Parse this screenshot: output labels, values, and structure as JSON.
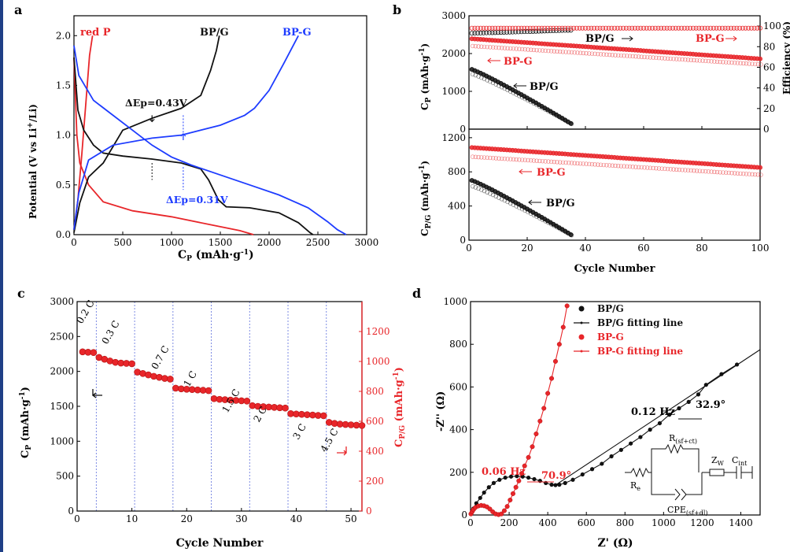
{
  "chart_data": [
    {
      "panel": "a",
      "type": "line",
      "xlabel": "CP (mAh·g-1)",
      "ylabel": "Potential (V vs Li+/Li)",
      "xlim": [
        0,
        3000
      ],
      "ylim": [
        0,
        2.2
      ],
      "xticks": [
        0,
        500,
        1000,
        1500,
        2000,
        2500,
        3000
      ],
      "yticks": [
        0.0,
        0.5,
        1.0,
        1.5,
        2.0
      ],
      "series": [
        {
          "name": "red P",
          "color": "#e8262a",
          "curves": [
            [
              [
                0,
                1.78
              ],
              [
                30,
                1.0
              ],
              [
                60,
                0.72
              ],
              [
                150,
                0.5
              ],
              [
                300,
                0.33
              ],
              [
                600,
                0.24
              ],
              [
                1000,
                0.18
              ],
              [
                1400,
                0.1
              ],
              [
                1700,
                0.04
              ],
              [
                1840,
                0.0
              ]
            ],
            [
              [
                0,
                0.05
              ],
              [
                40,
                0.35
              ],
              [
                80,
                0.8
              ],
              [
                120,
                1.3
              ],
              [
                160,
                1.8
              ],
              [
                190,
                2.0
              ]
            ]
          ]
        },
        {
          "name": "BP/G",
          "color": "#111111",
          "curves": [
            [
              [
                0,
                1.78
              ],
              [
                40,
                1.25
              ],
              [
                100,
                1.05
              ],
              [
                200,
                0.9
              ],
              [
                300,
                0.82
              ],
              [
                500,
                0.79
              ],
              [
                800,
                0.76
              ],
              [
                1100,
                0.72
              ],
              [
                1300,
                0.66
              ],
              [
                1380,
                0.55
              ],
              [
                1480,
                0.35
              ],
              [
                1560,
                0.28
              ],
              [
                1800,
                0.27
              ],
              [
                2100,
                0.22
              ],
              [
                2300,
                0.12
              ],
              [
                2420,
                0.02
              ],
              [
                2450,
                0.0
              ]
            ],
            [
              [
                0,
                0.02
              ],
              [
                60,
                0.32
              ],
              [
                150,
                0.58
              ],
              [
                300,
                0.72
              ],
              [
                500,
                1.05
              ],
              [
                800,
                1.17
              ],
              [
                1100,
                1.27
              ],
              [
                1300,
                1.4
              ],
              [
                1400,
                1.65
              ],
              [
                1460,
                1.85
              ],
              [
                1490,
                2.0
              ]
            ]
          ]
        },
        {
          "name": "BP-G",
          "color": "#1e3cff",
          "curves": [
            [
              [
                0,
                1.9
              ],
              [
                50,
                1.6
              ],
              [
                200,
                1.35
              ],
              [
                400,
                1.2
              ],
              [
                600,
                1.05
              ],
              [
                800,
                0.9
              ],
              [
                1000,
                0.78
              ],
              [
                1200,
                0.7
              ],
              [
                1500,
                0.6
              ],
              [
                1800,
                0.5
              ],
              [
                2100,
                0.4
              ],
              [
                2400,
                0.27
              ],
              [
                2600,
                0.13
              ],
              [
                2700,
                0.05
              ],
              [
                2790,
                0.0
              ]
            ],
            [
              [
                0,
                0.05
              ],
              [
                50,
                0.42
              ],
              [
                150,
                0.75
              ],
              [
                400,
                0.9
              ],
              [
                800,
                0.97
              ],
              [
                1100,
                1.0
              ],
              [
                1500,
                1.1
              ],
              [
                1750,
                1.2
              ],
              [
                1850,
                1.27
              ],
              [
                2000,
                1.45
              ],
              [
                2150,
                1.72
              ],
              [
                2300,
                2.0
              ]
            ]
          ]
        }
      ],
      "annotations": [
        {
          "text": "ΔEp=0.43V",
          "color": "#111111"
        },
        {
          "text": "ΔEp=0.31V",
          "color": "#1e3cff"
        }
      ]
    },
    {
      "panel": "b",
      "type": "scatter",
      "xlabel": "Cycle Number",
      "xlim": [
        0,
        100
      ],
      "xticks": [
        0,
        20,
        40,
        60,
        80,
        100
      ],
      "top": {
        "ylabel": "CP (mAh·g-1)",
        "y2label": "Efficiency (%)",
        "ylim": [
          0,
          3000
        ],
        "yticks": [
          0,
          1000,
          2000,
          3000
        ],
        "y2lim": [
          0,
          110
        ],
        "y2ticks": [
          0,
          20,
          40,
          60,
          80,
          100
        ],
        "series": [
          {
            "name": "BP/G",
            "kind": "capacity",
            "color": "#111111",
            "n": 35,
            "start": 1580,
            "end": 150,
            "shape": "decay"
          },
          {
            "name": "BP-G",
            "kind": "capacity",
            "color": "#e8262a",
            "n": 100,
            "start": 2390,
            "end": 1860,
            "shape": "linear"
          },
          {
            "name": "BP/G",
            "kind": "efficiency",
            "color": "#111111",
            "n": 35,
            "start": 93,
            "end": 96,
            "shape": "flat"
          },
          {
            "name": "BP-G",
            "kind": "efficiency",
            "color": "#e8262a",
            "n": 100,
            "start": 98,
            "end": 98,
            "shape": "flat"
          }
        ],
        "labels": [
          "BP/G",
          "BP-G",
          "BP-G",
          "BP/G"
        ]
      },
      "bottom": {
        "ylabel": "CP/G (mAh·g-1)",
        "ylim": [
          0,
          1300
        ],
        "yticks": [
          0,
          400,
          800,
          1200
        ],
        "series": [
          {
            "name": "BP/G",
            "color": "#111111",
            "n": 35,
            "start": 700,
            "end": 65,
            "shape": "decay"
          },
          {
            "name": "BP-G",
            "color": "#e8262a",
            "n": 100,
            "start": 1085,
            "end": 850,
            "shape": "linear"
          }
        ],
        "labels": [
          "BP-G",
          "BP/G"
        ]
      }
    },
    {
      "panel": "c",
      "type": "scatter",
      "xlabel": "Cycle Number",
      "ylabel": "CP (mAh·g-1)",
      "y2label": "CP/G (mAh·g-1)",
      "xlim": [
        0,
        52
      ],
      "xticks": [
        0,
        10,
        20,
        30,
        40,
        50
      ],
      "ylim": [
        0,
        3000
      ],
      "yticks": [
        0,
        500,
        1000,
        1500,
        2000,
        2500,
        3000
      ],
      "y2lim": [
        0,
        1400
      ],
      "y2ticks": [
        0,
        200,
        400,
        600,
        800,
        1000,
        1200
      ],
      "rate_labels": [
        "0.2 C",
        "0.3 C",
        "0.7 C",
        "1 C",
        "1.5 C",
        "2 C",
        "3 C",
        "4.5 C"
      ],
      "rate_dividers": [
        3.5,
        10.5,
        17.5,
        24.5,
        31.5,
        38.5,
        45.5
      ],
      "x": [
        1,
        2,
        3,
        4,
        5,
        6,
        7,
        8,
        9,
        10,
        11,
        12,
        13,
        14,
        15,
        16,
        17,
        18,
        19,
        20,
        21,
        22,
        23,
        24,
        25,
        26,
        27,
        28,
        29,
        30,
        31,
        32,
        33,
        34,
        35,
        36,
        37,
        38,
        39,
        40,
        41,
        42,
        43,
        44,
        45,
        46,
        47,
        48,
        49,
        50,
        51,
        52
      ],
      "values": [
        2280,
        2275,
        2270,
        2200,
        2175,
        2150,
        2130,
        2120,
        2115,
        2110,
        1990,
        1970,
        1950,
        1930,
        1915,
        1900,
        1890,
        1760,
        1750,
        1745,
        1740,
        1735,
        1730,
        1725,
        1610,
        1600,
        1595,
        1590,
        1585,
        1580,
        1575,
        1510,
        1500,
        1495,
        1490,
        1485,
        1480,
        1475,
        1395,
        1390,
        1385,
        1380,
        1375,
        1370,
        1365,
        1270,
        1255,
        1245,
        1240,
        1235,
        1230,
        1225
      ]
    },
    {
      "panel": "d",
      "type": "scatter",
      "xlabel": "Z' (Ω)",
      "ylabel": "-Z'' (Ω)",
      "xlim": [
        0,
        1500
      ],
      "ylim": [
        0,
        1000
      ],
      "xticks": [
        0,
        200,
        400,
        600,
        800,
        1000,
        1200,
        1400
      ],
      "yticks": [
        0,
        200,
        400,
        600,
        800,
        1000
      ],
      "legend": [
        "BP/G",
        "BP/G fitting line",
        "BP-G",
        "BP-G fitting line"
      ],
      "annotations": [
        {
          "text": "0.12 Hz",
          "color": "#111111"
        },
        {
          "text": "32.9°",
          "color": "#111111"
        },
        {
          "text": "0.06 Hz",
          "color": "#e8262a"
        },
        {
          "text": "70.9°",
          "color": "#e8262a"
        }
      ],
      "series": [
        {
          "name": "BP/G",
          "color": "#111111",
          "x": [
            5,
            15,
            30,
            50,
            70,
            95,
            120,
            150,
            180,
            210,
            240,
            270,
            300,
            330,
            360,
            390,
            420,
            440,
            460,
            490,
            530,
            580,
            630,
            680,
            730,
            780,
            830,
            880,
            930,
            980,
            1030,
            1080,
            1130,
            1180,
            1220,
            1300,
            1380
          ],
          "y": [
            10,
            30,
            55,
            80,
            105,
            130,
            150,
            165,
            175,
            180,
            182,
            180,
            175,
            168,
            160,
            150,
            142,
            140,
            142,
            150,
            165,
            190,
            215,
            240,
            275,
            305,
            335,
            365,
            400,
            430,
            470,
            500,
            530,
            565,
            610,
            660,
            705
          ]
        },
        {
          "name": "BP-G",
          "color": "#e8262a",
          "x": [
            2,
            8,
            15,
            25,
            40,
            55,
            70,
            85,
            100,
            115,
            130,
            145,
            160,
            175,
            190,
            205,
            220,
            235,
            250,
            265,
            280,
            300,
            320,
            340,
            360,
            380,
            400,
            420,
            440,
            460,
            480,
            500
          ],
          "y": [
            5,
            15,
            25,
            35,
            42,
            45,
            43,
            38,
            28,
            15,
            5,
            2,
            5,
            20,
            40,
            70,
            100,
            130,
            160,
            195,
            230,
            270,
            320,
            380,
            440,
            500,
            570,
            640,
            720,
            800,
            880,
            980
          ]
        }
      ],
      "circuit_labels": [
        "Re",
        "R(sf+ct)",
        "CPE(sf+dl)",
        "Zw",
        "Cint"
      ]
    }
  ],
  "panel_letters": {
    "a": "a",
    "b": "b",
    "c": "c",
    "d": "d"
  }
}
